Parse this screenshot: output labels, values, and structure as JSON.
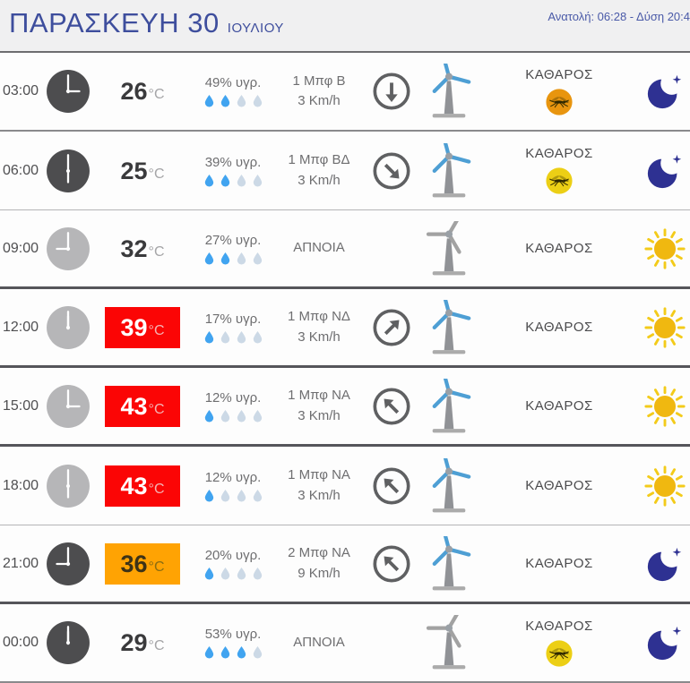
{
  "header": {
    "title": "ΠΑΡΑΣΚΕΥΗ 30",
    "subtitle": "ΙΟΥΛΙΟΥ",
    "sun_info": "Ανατολή: 06:28  - Δύση 20:4"
  },
  "colors": {
    "accent_blue": "#3e4e9d",
    "hot_badge": "#fb0505",
    "warm_badge": "#ffa303",
    "droplet_on": "#41a4f0",
    "droplet_off": "#ccd9e6",
    "night_clock": "#4d4d4f",
    "day_clock": "#b6b6b8",
    "moon": "#2e3192",
    "sun_core": "#f0b810",
    "sun_ray": "#f3cb1a",
    "mosquito_orange": "#e8950f",
    "mosquito_yellow": "#eccf15",
    "turbine_blade": "#4e9fd4",
    "turbine_calm": "#a2a2a2",
    "arrow": "#5f6062"
  },
  "rows": [
    {
      "time": "03:00",
      "clock": "night",
      "clock_hour": 3,
      "temp": "26",
      "temp_unit": "°C",
      "badge": "none",
      "humidity": "49% υγρ.",
      "drops_on": 2,
      "wind1": "1 Μπφ Β",
      "wind2": "3 Km/h",
      "arrow_deg": 180,
      "turbine": "windy",
      "condition": "ΚΑΘΑΡΟΣ",
      "mosquito": "orange",
      "sky": "moon",
      "divider": "mid"
    },
    {
      "time": "06:00",
      "clock": "night",
      "clock_hour": 6,
      "temp": "25",
      "temp_unit": "°C",
      "badge": "none",
      "humidity": "39% υγρ.",
      "drops_on": 2,
      "wind1": "1 Μπφ ΒΔ",
      "wind2": "3 Km/h",
      "arrow_deg": 135,
      "turbine": "windy",
      "condition": "ΚΑΘΑΡΟΣ",
      "mosquito": "yellow",
      "sky": "moon",
      "divider": "thin"
    },
    {
      "time": "09:00",
      "clock": "day",
      "clock_hour": 9,
      "temp": "32",
      "temp_unit": "°C",
      "badge": "none",
      "humidity": "27% υγρ.",
      "drops_on": 2,
      "wind1": "ΑΠΝΟΙΑ",
      "wind2": "",
      "arrow_deg": null,
      "turbine": "calm",
      "condition": "ΚΑΘΑΡΟΣ",
      "mosquito": null,
      "sky": "sun",
      "divider": "dark"
    },
    {
      "time": "12:00",
      "clock": "day",
      "clock_hour": 0,
      "temp": "39",
      "temp_unit": "°C",
      "badge": "red",
      "humidity": "17% υγρ.",
      "drops_on": 1,
      "wind1": "1 Μπφ ΝΔ",
      "wind2": "3 Km/h",
      "arrow_deg": 45,
      "turbine": "windy",
      "condition": "ΚΑΘΑΡΟΣ",
      "mosquito": null,
      "sky": "sun",
      "divider": "dark"
    },
    {
      "time": "15:00",
      "clock": "day",
      "clock_hour": 3,
      "temp": "43",
      "temp_unit": "°C",
      "badge": "red",
      "humidity": "12% υγρ.",
      "drops_on": 1,
      "wind1": "1 Μπφ ΝΑ",
      "wind2": "3 Km/h",
      "arrow_deg": 315,
      "turbine": "windy",
      "condition": "ΚΑΘΑΡΟΣ",
      "mosquito": null,
      "sky": "sun",
      "divider": "dark"
    },
    {
      "time": "18:00",
      "clock": "day",
      "clock_hour": 6,
      "temp": "43",
      "temp_unit": "°C",
      "badge": "red",
      "humidity": "12% υγρ.",
      "drops_on": 1,
      "wind1": "1 Μπφ ΝΑ",
      "wind2": "3 Km/h",
      "arrow_deg": 315,
      "turbine": "windy",
      "condition": "ΚΑΘΑΡΟΣ",
      "mosquito": null,
      "sky": "sun",
      "divider": "thin"
    },
    {
      "time": "21:00",
      "clock": "night",
      "clock_hour": 9,
      "temp": "36",
      "temp_unit": "°C",
      "badge": "orange",
      "humidity": "20% υγρ.",
      "drops_on": 1,
      "wind1": "2 Μπφ ΝΑ",
      "wind2": "9 Km/h",
      "arrow_deg": 315,
      "turbine": "windy",
      "condition": "ΚΑΘΑΡΟΣ",
      "mosquito": null,
      "sky": "moon",
      "divider": "dark"
    },
    {
      "time": "00:00",
      "clock": "night",
      "clock_hour": 0,
      "temp": "29",
      "temp_unit": "°C",
      "badge": "none",
      "humidity": "53% υγρ.",
      "drops_on": 3,
      "wind1": "ΑΠΝΟΙΑ",
      "wind2": "",
      "arrow_deg": null,
      "turbine": "calm",
      "condition": "ΚΑΘΑΡΟΣ",
      "mosquito": "yellow",
      "sky": "moon",
      "divider": "mid"
    }
  ]
}
